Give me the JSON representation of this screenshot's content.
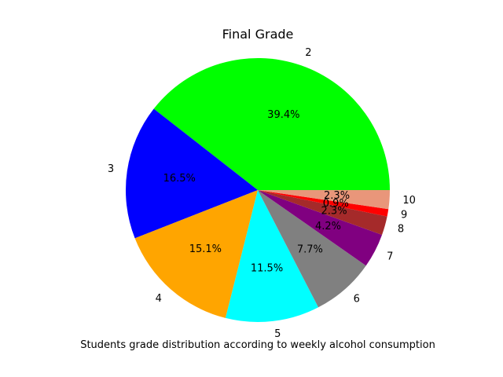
{
  "chart_data": {
    "type": "pie",
    "title": "Final Grade",
    "xlabel": "Students grade distribution according to weekly alcohol consumption",
    "slices": [
      {
        "label": "2",
        "value": 39.4,
        "pct_label": "39.4%",
        "color": "#00ff00"
      },
      {
        "label": "3",
        "value": 16.5,
        "pct_label": "16.5%",
        "color": "#0000ff"
      },
      {
        "label": "4",
        "value": 15.1,
        "pct_label": "15.1%",
        "color": "#ffa500"
      },
      {
        "label": "5",
        "value": 11.5,
        "pct_label": "11.5%",
        "color": "#00ffff"
      },
      {
        "label": "6",
        "value": 7.7,
        "pct_label": "7.7%",
        "color": "#808080"
      },
      {
        "label": "7",
        "value": 4.2,
        "pct_label": "4.2%",
        "color": "#800080"
      },
      {
        "label": "8",
        "value": 2.3,
        "pct_label": "2.3%",
        "color": "#a52a2a"
      },
      {
        "label": "9",
        "value": 0.9,
        "pct_label": "0.9%",
        "color": "#ff0000"
      },
      {
        "label": "10",
        "value": 2.3,
        "pct_label": "2.3%",
        "color": "#e9967a"
      }
    ]
  }
}
